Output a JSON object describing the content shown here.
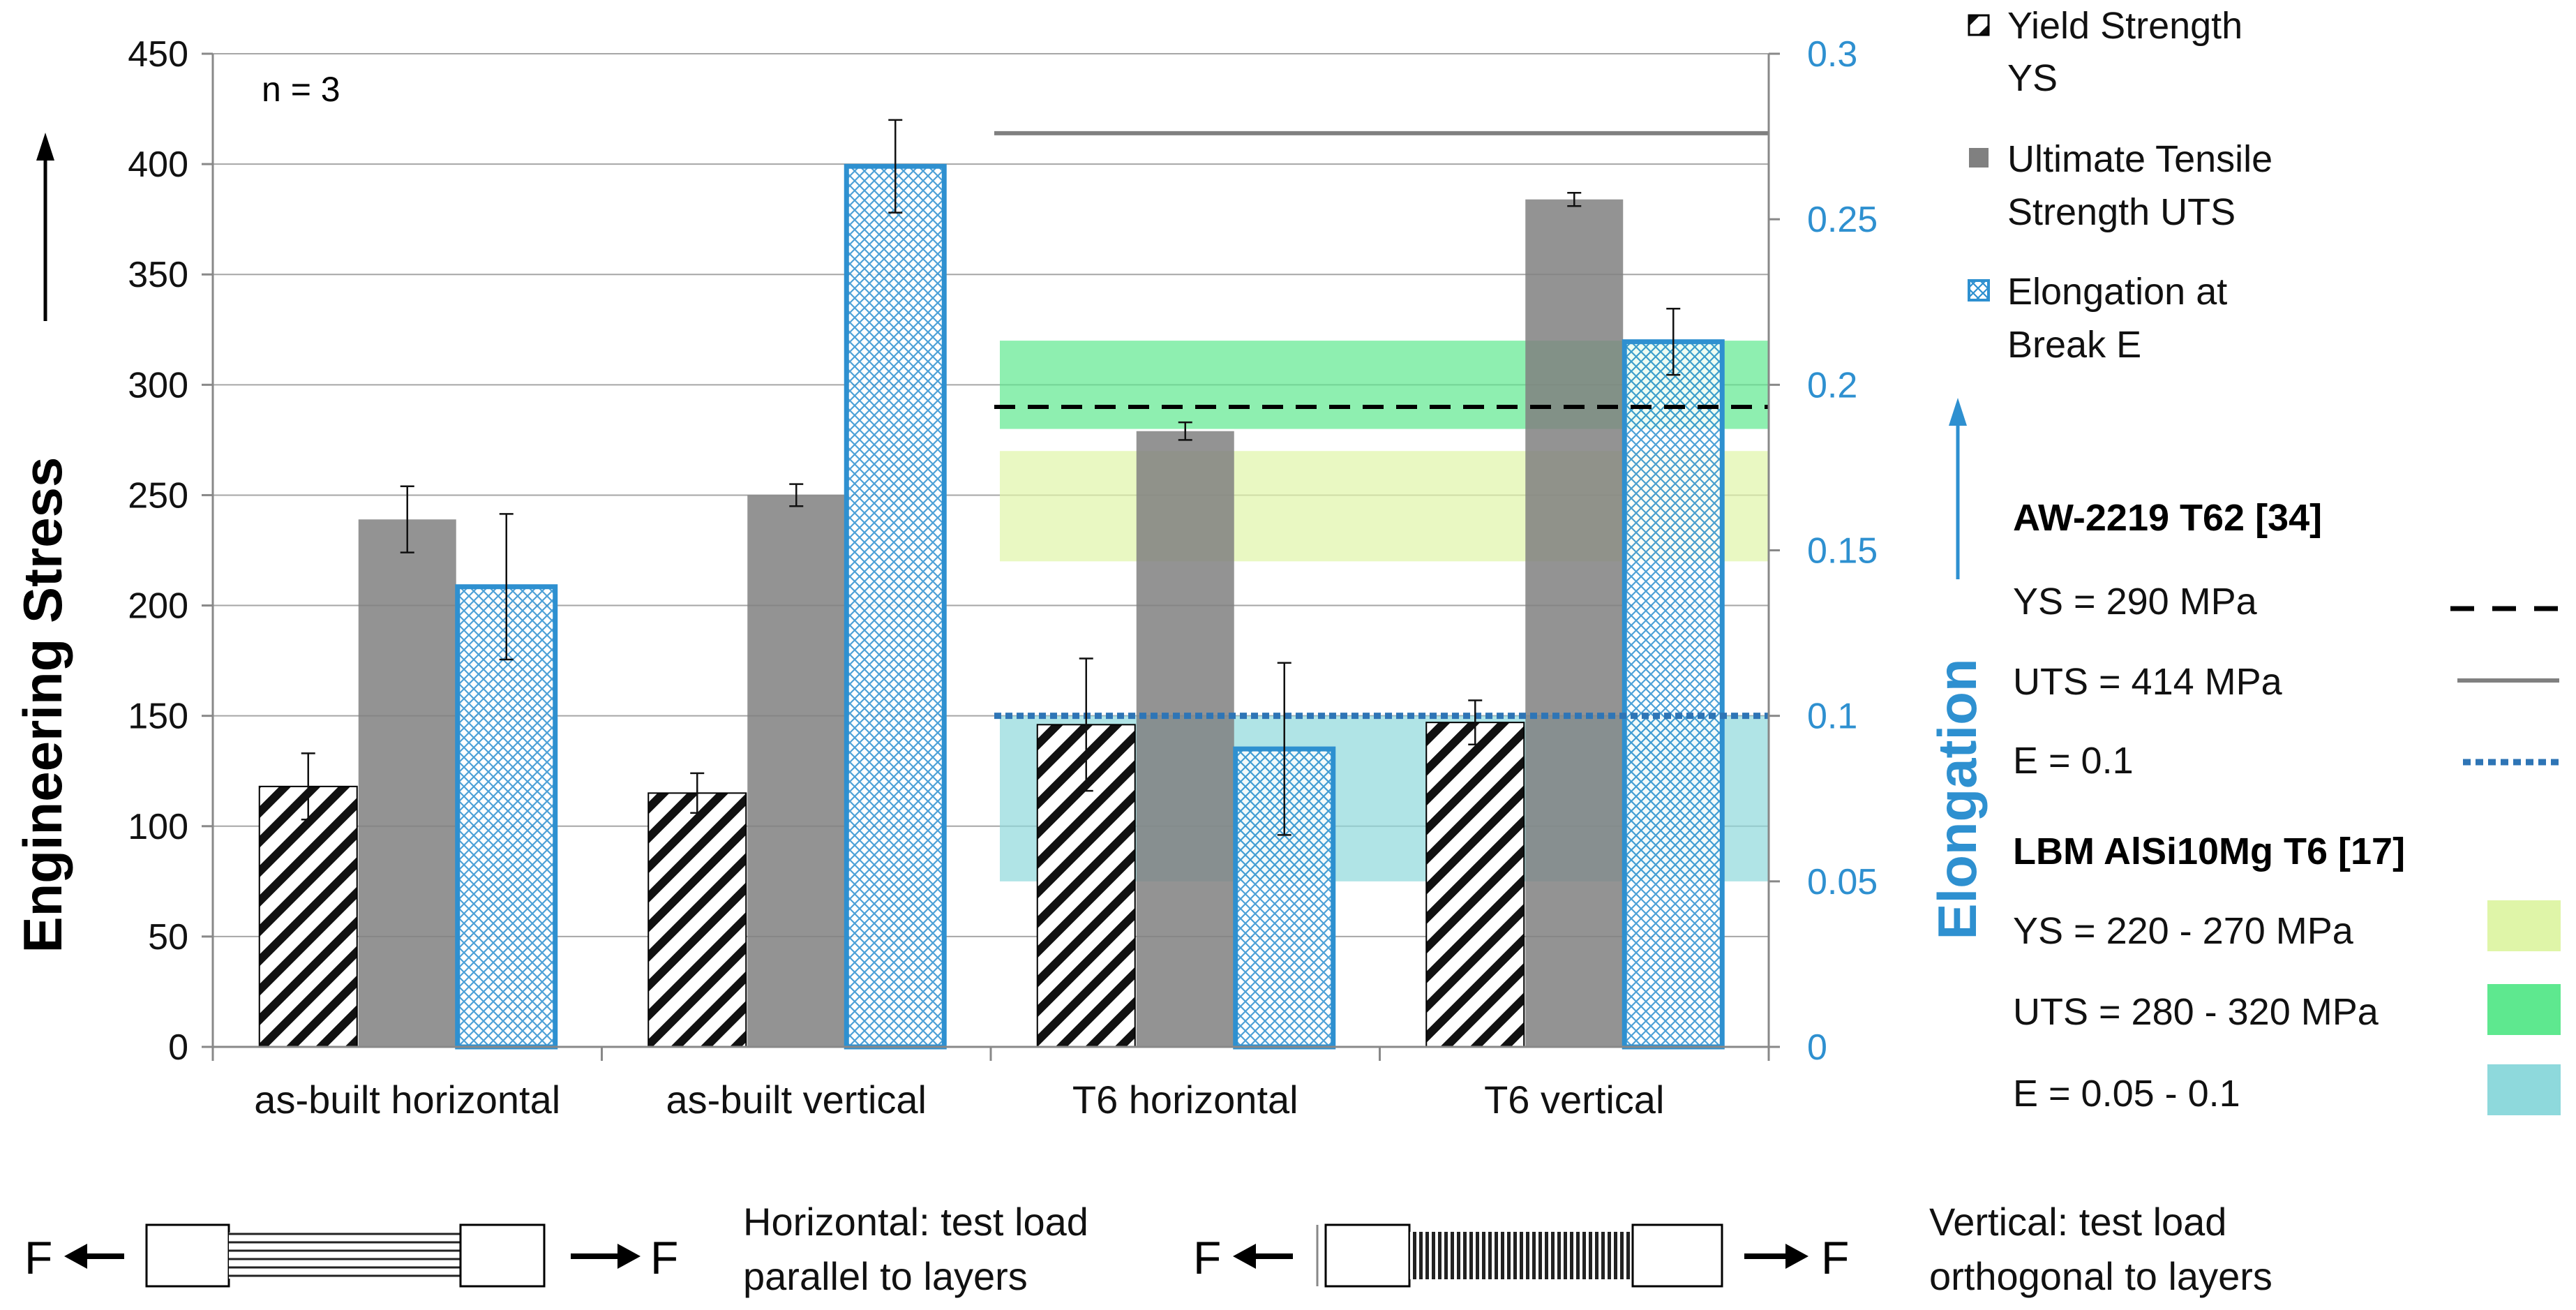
{
  "chart_data": {
    "type": "bar",
    "n_label": "n = 3",
    "categories": [
      "as-built horizontal",
      "as-built vertical",
      "T6 horizontal",
      "T6 vertical"
    ],
    "ylabel": "Engineering Stress",
    "y2label": "Elongation",
    "ylim": [
      0,
      450
    ],
    "y2lim": [
      0,
      0.3
    ],
    "yticks": [
      "0",
      "50",
      "100",
      "150",
      "200",
      "250",
      "300",
      "350",
      "400",
      "450"
    ],
    "y2ticks": [
      "0",
      "0.05",
      "0.1",
      "0.15",
      "0.2",
      "0.25",
      "0.3"
    ],
    "series": [
      {
        "name": "Yield Strength YS",
        "legend_line1": "Yield Strength",
        "legend_line2": "YS",
        "axis": "left",
        "values": [
          118,
          115,
          146,
          147
        ],
        "errors": [
          15,
          9,
          30,
          10
        ]
      },
      {
        "name": "Ultimate Tensile Strength UTS",
        "legend_line1": "Ultimate Tensile",
        "legend_line2": "Strength UTS",
        "axis": "left",
        "values": [
          239,
          250,
          279,
          384
        ],
        "errors": [
          15,
          5,
          4,
          3
        ]
      },
      {
        "name": "Elongation at Break E",
        "legend_line1": "Elongation at",
        "legend_line2": "Break E",
        "axis": "right",
        "values": [
          0.139,
          0.266,
          0.09,
          0.213
        ],
        "errors": [
          0.022,
          0.014,
          0.026,
          0.01
        ]
      }
    ],
    "references": {
      "aw_title": "AW-2219 T62 [34]",
      "aw_lines": [
        {
          "label": "YS = 290 MPa",
          "value": 290,
          "axis": "left",
          "style": "dashed",
          "color": "#000000"
        },
        {
          "label": "UTS = 414 MPa",
          "value": 414,
          "axis": "left",
          "style": "solid",
          "color": "#808080"
        },
        {
          "label": "E = 0.1",
          "value": 0.1,
          "axis": "right",
          "style": "dotted",
          "color": "#2e75b6"
        }
      ],
      "lbm_title": "LBM AlSi10Mg T6 [17]",
      "lbm_bands": [
        {
          "label": "YS = 220 - 270 MPa",
          "range": [
            220,
            270
          ],
          "axis": "left",
          "color": "#dff5a8"
        },
        {
          "label": "UTS = 280 - 320 MPa",
          "range": [
            280,
            320
          ],
          "axis": "left",
          "color": "#5ee88f"
        },
        {
          "label": "E = 0.05 - 0.1",
          "range": [
            0.05,
            0.1
          ],
          "axis": "right",
          "color": "#8ed9dc"
        }
      ]
    },
    "colors": {
      "uts": "#808080",
      "elongation": "#2e90d0",
      "axis2": "#2e90d0"
    }
  },
  "specimens": {
    "force_label": "F",
    "horizontal_line1": "Horizontal: test load",
    "horizontal_line2": "parallel to layers",
    "vertical_line1": "Vertical: test load",
    "vertical_line2": "orthogonal to layers"
  }
}
